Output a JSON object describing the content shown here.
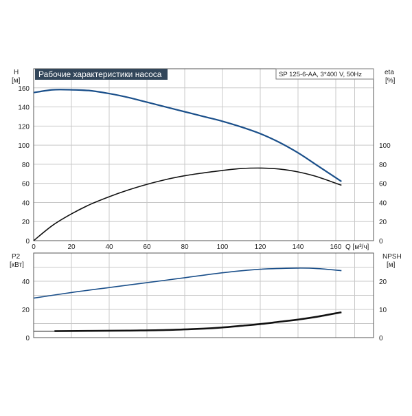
{
  "chart_data": [
    {
      "type": "line",
      "title": "Рабочие характеристики насоса",
      "subtitle": "SP 125-6-AA, 3*400 V, 50Hz",
      "ylabel_left": "H",
      "ylabel_left_unit": "[м]",
      "ylabel_right": "eta",
      "ylabel_right_unit": "[%]",
      "xlabel": "Q [м³/ч]",
      "xlim": [
        0,
        180
      ],
      "ylim": [
        0,
        180
      ],
      "x_ticks": [
        0,
        20,
        40,
        60,
        80,
        100,
        120,
        140,
        160
      ],
      "y_ticks_left": [
        0,
        20,
        40,
        60,
        80,
        100,
        120,
        140,
        160
      ],
      "y_ticks_right": [
        0,
        20,
        40,
        60,
        80,
        100
      ],
      "grid": true,
      "series": [
        {
          "color": "#1a4f8a",
          "x": [
            0,
            10,
            20,
            30,
            40,
            50,
            60,
            70,
            80,
            90,
            100,
            110,
            120,
            130,
            140,
            150,
            163
          ],
          "values": [
            155,
            158,
            158,
            157,
            154,
            150,
            145,
            140,
            135,
            130,
            125,
            119,
            112,
            103,
            92,
            79,
            62
          ]
        },
        {
          "color": "#111111",
          "x": [
            0,
            10,
            20,
            30,
            40,
            50,
            60,
            70,
            80,
            90,
            100,
            110,
            120,
            130,
            140,
            150,
            163
          ],
          "values": [
            0,
            16,
            28,
            38,
            46,
            53,
            59,
            64,
            68,
            71,
            73.5,
            75.5,
            76,
            75,
            72,
            67,
            58
          ]
        }
      ]
    },
    {
      "type": "line",
      "ylabel_left": "P2",
      "ylabel_left_unit": "[кВт]",
      "ylabel_right": "NPSH",
      "ylabel_right_unit": "[м]",
      "xlim": [
        0,
        180
      ],
      "ylim_left": [
        0,
        60
      ],
      "ylim_right": [
        0,
        30
      ],
      "y_ticks_left": [
        0,
        20,
        40
      ],
      "y_ticks_right": [
        0,
        10,
        20
      ],
      "grid": true,
      "series": [
        {
          "color": "#1a4f8a",
          "axis": "left",
          "x": [
            0,
            20,
            40,
            60,
            80,
            100,
            120,
            140,
            150,
            163
          ],
          "values": [
            28,
            32,
            35.5,
            39,
            42.5,
            46,
            48.5,
            49.3,
            49,
            47.5
          ]
        },
        {
          "color": "#3a3a3a",
          "axis": "left",
          "x": [
            0,
            11
          ],
          "values": [
            4.6,
            4.6
          ]
        },
        {
          "color": "#111111",
          "axis": "right",
          "x": [
            11,
            30,
            50,
            70,
            90,
            100,
            110,
            120,
            130,
            140,
            150,
            163
          ],
          "values": [
            2.3,
            2.4,
            2.5,
            2.7,
            3.2,
            3.6,
            4.2,
            4.8,
            5.6,
            6.4,
            7.4,
            9
          ]
        }
      ]
    }
  ]
}
